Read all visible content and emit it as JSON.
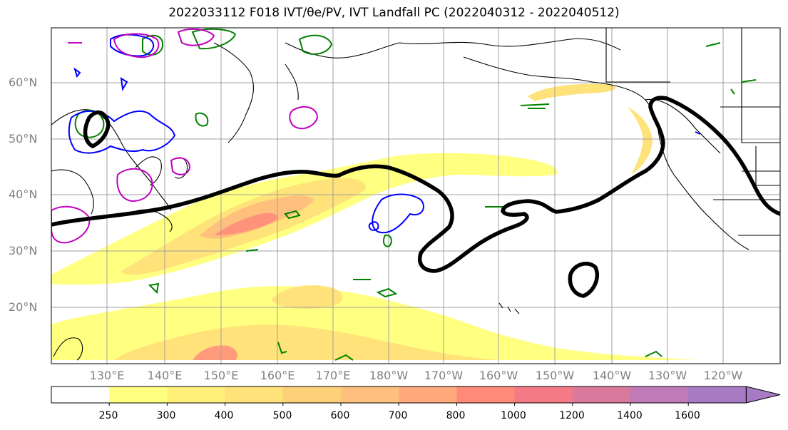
{
  "title": "2022033112 F018 IVT/θe/PV, IVT Landfall PC (2022040312 - 2022040512)",
  "lat_labels": [
    "60°N",
    "50°N",
    "40°N",
    "30°N",
    "20°N"
  ],
  "lon_labels": [
    "130°E",
    "140°E",
    "150°E",
    "160°E",
    "170°E",
    "180°W",
    "170°W",
    "160°W",
    "150°W",
    "140°W",
    "130°W",
    "120°W"
  ],
  "colorbar": {
    "levels": [
      "250",
      "300",
      "400",
      "500",
      "600",
      "700",
      "800",
      "1000",
      "1200",
      "1400",
      "1600"
    ],
    "colors": [
      "#ffffff",
      "#ffff80",
      "#fff07a",
      "#ffe27a",
      "#ffd07a",
      "#ffbf7d",
      "#ffaa7d",
      "#ff8a7a",
      "#f47a86",
      "#d97a9c",
      "#c17ab8",
      "#a77ac4"
    ]
  },
  "colors": {
    "pc_contour": "#000000",
    "theta_e": "#008000",
    "pv_blue": "#0000ff",
    "pv_magenta": "#c000c0",
    "grid": "#a0a0a0",
    "coast": "#000000"
  }
}
